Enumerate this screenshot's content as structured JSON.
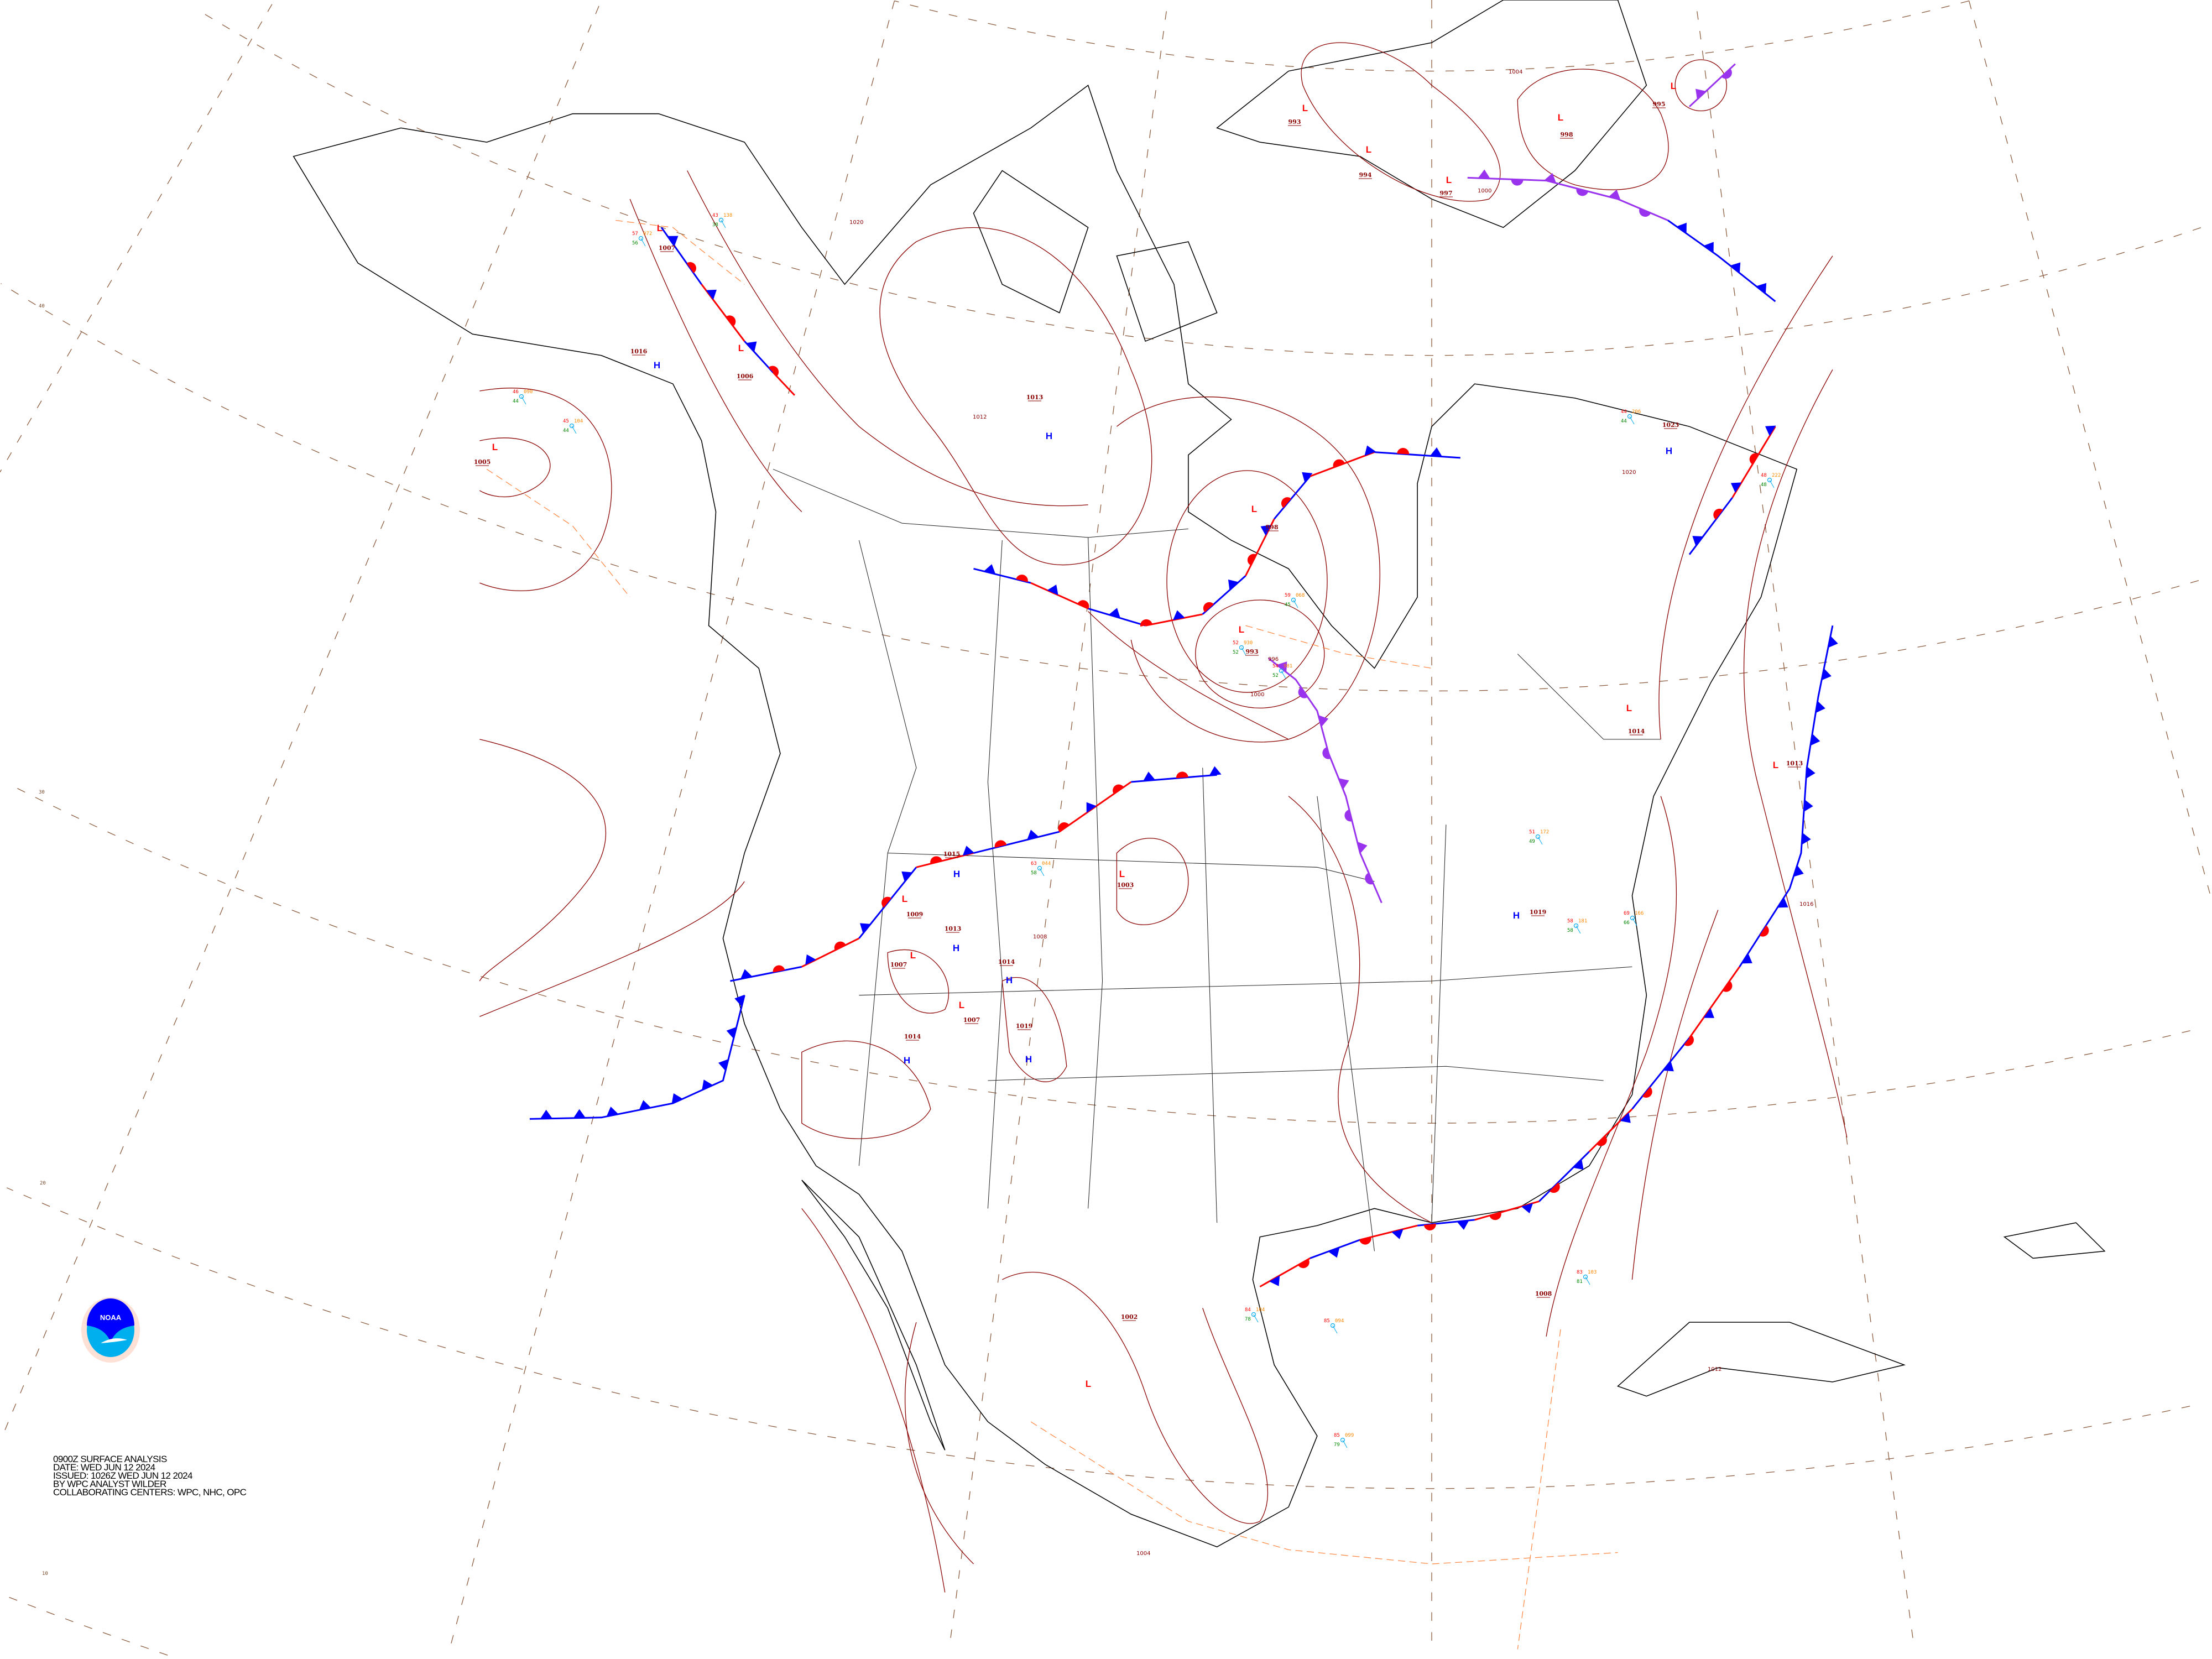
{
  "title_block": {
    "line1": "0900Z SURFACE ANALYSIS",
    "line2": "DATE: WED JUN 12 2024",
    "line3": "ISSUED: 1026Z WED JUN 12 2024",
    "line4": "BY WPC ANALYST WILDER",
    "line5": "COLLABORATING CENTERS: WPC, NHC, OPC"
  },
  "logo": {
    "text": "NOAA",
    "ring_text": "NATIONAL OCEANIC AND ATMOSPHERIC ADMINISTRATION  U.S. DEPARTMENT OF COMMERCE"
  },
  "latitude_labels": [
    "40",
    "30",
    "20",
    "10"
  ],
  "colors": {
    "isobar": "#8b0000",
    "graticule": "#8b5a3c",
    "coastline": "#000000",
    "cold_front": "#0000ff",
    "warm_front": "#ff0000",
    "occluded_front": "#9933ee",
    "trough": "#ff8844",
    "high": "#0000ff",
    "low": "#ff0000",
    "temperature": "#ff0000",
    "pressure": "#ff8800",
    "dewpoint": "#008800",
    "station": "#00aaee"
  },
  "pressure_centers": [
    {
      "type": "L",
      "value": "993"
    },
    {
      "type": "L",
      "value": "998"
    },
    {
      "type": "L",
      "value": "993"
    },
    {
      "type": "L",
      "value": "994"
    },
    {
      "type": "L",
      "value": "997"
    },
    {
      "type": "L",
      "value": "998"
    },
    {
      "type": "L",
      "value": "995"
    },
    {
      "type": "L",
      "value": "1007"
    },
    {
      "type": "L",
      "value": "1006"
    },
    {
      "type": "H",
      "value": "1016"
    },
    {
      "type": "L",
      "value": "1005"
    },
    {
      "type": "H",
      "value": "1013"
    },
    {
      "type": "L",
      "value": "1003"
    },
    {
      "type": "H",
      "value": "1015"
    },
    {
      "type": "H",
      "value": "1013"
    },
    {
      "type": "L",
      "value": "1007"
    },
    {
      "type": "L",
      "value": "1009"
    },
    {
      "type": "H",
      "value": "1014"
    },
    {
      "type": "L",
      "value": "1007"
    },
    {
      "type": "H",
      "value": "1019"
    },
    {
      "type": "H",
      "value": "1014"
    },
    {
      "type": "H",
      "value": "1019"
    },
    {
      "type": "L",
      "value": "1014"
    },
    {
      "type": "L",
      "value": "1013"
    },
    {
      "type": "H",
      "value": "1023"
    },
    {
      "type": "L",
      "value": "1002"
    },
    {
      "type": "",
      "value": "1008"
    }
  ],
  "isobar_labels": [
    "1020",
    "1012",
    "1020",
    "1016",
    "1012",
    "1004",
    "1008",
    "1000",
    "996",
    "1004",
    "1000"
  ],
  "fronts": [
    {
      "type": "cold"
    },
    {
      "type": "stationary"
    },
    {
      "type": "stationary"
    },
    {
      "type": "occluded"
    },
    {
      "type": "stationary"
    },
    {
      "type": "cold"
    },
    {
      "type": "stationary"
    },
    {
      "type": "occluded"
    },
    {
      "type": "cold"
    },
    {
      "type": "occluded"
    },
    {
      "type": "stationary"
    }
  ],
  "stations": [
    {
      "temp": "63",
      "pressure": "044",
      "dew": "58"
    },
    {
      "temp": "51",
      "pressure": "172",
      "dew": "49"
    },
    {
      "temp": "58",
      "pressure": "181",
      "dew": "58"
    },
    {
      "temp": "69",
      "pressure": "166",
      "dew": "66"
    },
    {
      "temp": "84",
      "pressure": "104",
      "dew": "78"
    },
    {
      "temp": "85",
      "pressure": "094",
      "dew": ""
    },
    {
      "temp": "85",
      "pressure": "099",
      "dew": "79"
    },
    {
      "temp": "52",
      "pressure": "930",
      "dew": "52"
    },
    {
      "temp": "54",
      "pressure": "981",
      "dew": "52"
    },
    {
      "temp": "59",
      "pressure": "068",
      "dew": "45"
    },
    {
      "temp": "57",
      "pressure": "072",
      "dew": "56"
    },
    {
      "temp": "43",
      "pressure": "138",
      "dew": "38"
    },
    {
      "temp": "46",
      "pressure": "090",
      "dew": "44"
    },
    {
      "temp": "45",
      "pressure": "104",
      "dew": "44"
    },
    {
      "temp": "44",
      "pressure": "206",
      "dew": "44"
    },
    {
      "temp": "48",
      "pressure": "222",
      "dew": "48"
    },
    {
      "temp": "83",
      "pressure": "103",
      "dew": "81"
    }
  ]
}
